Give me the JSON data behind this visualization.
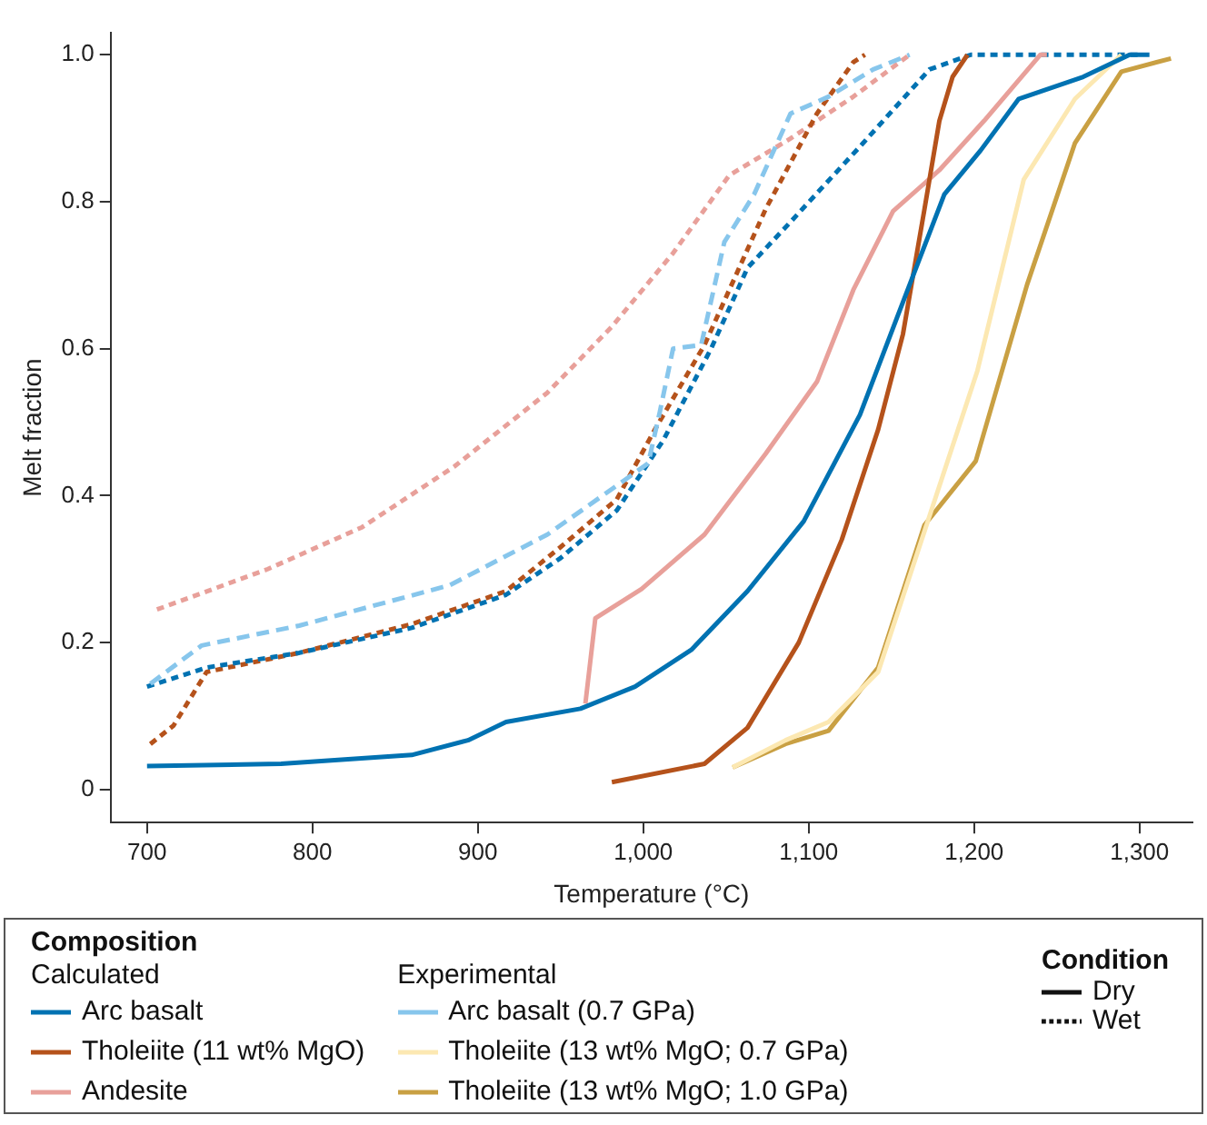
{
  "chart_data": {
    "type": "line",
    "xlabel": "Temperature (°C)",
    "ylabel": "Melt fraction",
    "legend_title": "Composition",
    "legend": "bottom",
    "xlim": [
      678,
      1332
    ],
    "xticks": [
      700,
      800,
      900,
      {
        "value": 1000,
        "label": "1,000"
      },
      {
        "value": 1100,
        "label": "1,100"
      },
      {
        "value": 1200,
        "label": "1,200"
      },
      {
        "value": 1300,
        "label": "1,300"
      }
    ],
    "ylim": [
      -0.045,
      1.03
    ],
    "yticks": [
      0,
      0.2,
      0.4,
      0.6,
      0.8,
      {
        "value": 1,
        "label": "1.0"
      }
    ],
    "annotations": [
      "Calculated",
      "Experimental",
      "Condition",
      "Dry",
      "Wet"
    ],
    "series": [
      {
        "name": "Arc basalt",
        "color": "#0072b2",
        "line_style": "solid",
        "x": [
          700,
          781,
          860,
          894,
          917,
          962,
          995,
          1029,
          1063,
          1097,
          1131,
          1153,
          1182,
          1204,
          1227,
          1266,
          1294,
          1306
        ],
        "values": [
          0.032,
          0.035,
          0.047,
          0.067,
          0.092,
          0.11,
          0.14,
          0.19,
          0.27,
          0.365,
          0.51,
          0.64,
          0.81,
          0.87,
          0.94,
          0.97,
          1.0,
          1.0
        ]
      },
      {
        "name": "Tholeiite (11 wt% MgO)",
        "color": "#b5521b",
        "line_style": "solid",
        "x": [
          981,
          1037,
          1063,
          1094,
          1120,
          1142,
          1157,
          1170,
          1179,
          1187,
          1196
        ],
        "values": [
          0.01,
          0.035,
          0.084,
          0.2,
          0.34,
          0.49,
          0.62,
          0.79,
          0.91,
          0.97,
          1.0
        ]
      },
      {
        "name": "Andesite",
        "color": "#e8a09a",
        "line_style": "solid",
        "x": [
          965,
          971,
          999,
          1037,
          1074,
          1105,
          1127,
          1151,
          1179,
          1206,
          1240,
          1244
        ],
        "values": [
          0.117,
          0.233,
          0.273,
          0.347,
          0.457,
          0.555,
          0.68,
          0.787,
          0.843,
          0.91,
          1.0,
          1.0
        ]
      },
      {
        "name": "Arc basalt (0.7 GPa)",
        "color": "#87c6ec",
        "line_style": "dashed",
        "x": [
          702,
          733,
          792,
          883,
          942,
          988,
          1003,
          1010,
          1018,
          1035,
          1049,
          1067,
          1089,
          1112,
          1139,
          1161
        ],
        "values": [
          0.144,
          0.196,
          0.223,
          0.278,
          0.347,
          0.42,
          0.444,
          0.514,
          0.6,
          0.605,
          0.745,
          0.81,
          0.92,
          0.943,
          0.98,
          1.0
        ]
      },
      {
        "name": "Tholeiite (13 wt% MgO; 0.7 GPa)",
        "color": "#fce8b2",
        "line_style": "solid",
        "x": [
          1054,
          1086,
          1112,
          1142,
          1173,
          1202,
          1230,
          1261,
          1289
        ],
        "values": [
          0.03,
          0.067,
          0.092,
          0.16,
          0.372,
          0.57,
          0.83,
          0.94,
          1.0
        ]
      },
      {
        "name": "Tholeiite (13 wt% MgO; 1.0 GPa)",
        "color": "#c9a043",
        "line_style": "solid",
        "x": [
          1054,
          1086,
          1112,
          1142,
          1170,
          1201,
          1232,
          1261,
          1289,
          1319
        ],
        "values": [
          0.03,
          0.062,
          0.08,
          0.166,
          0.36,
          0.447,
          0.687,
          0.88,
          0.977,
          0.995
        ]
      },
      {
        "color": "#0072b2",
        "line_style": "dotted",
        "x": [
          700,
          736,
          792,
          860,
          917,
          950,
          984,
          1012,
          1041,
          1063,
          1088,
          1133,
          1173,
          1198,
          1300
        ],
        "values": [
          0.14,
          0.166,
          0.186,
          0.22,
          0.265,
          0.315,
          0.38,
          0.475,
          0.6,
          0.71,
          0.77,
          0.88,
          0.98,
          1.0,
          1.0
        ]
      },
      {
        "color": "#b5521b",
        "line_style": "dotted",
        "x": [
          702,
          716,
          736,
          792,
          860,
          917,
          950,
          984,
          1007,
          1037,
          1074,
          1105,
          1127,
          1134
        ],
        "values": [
          0.062,
          0.087,
          0.16,
          0.186,
          0.225,
          0.27,
          0.33,
          0.395,
          0.49,
          0.605,
          0.79,
          0.92,
          0.99,
          1.0
        ]
      },
      {
        "color": "#e8a09a",
        "line_style": "dotted",
        "x": [
          706,
          773,
          830,
          886,
          942,
          981,
          1018,
          1052,
          1089,
          1127,
          1161
        ],
        "values": [
          0.245,
          0.3,
          0.357,
          0.44,
          0.54,
          0.63,
          0.73,
          0.836,
          0.886,
          0.943,
          1.0
        ]
      }
    ]
  }
}
